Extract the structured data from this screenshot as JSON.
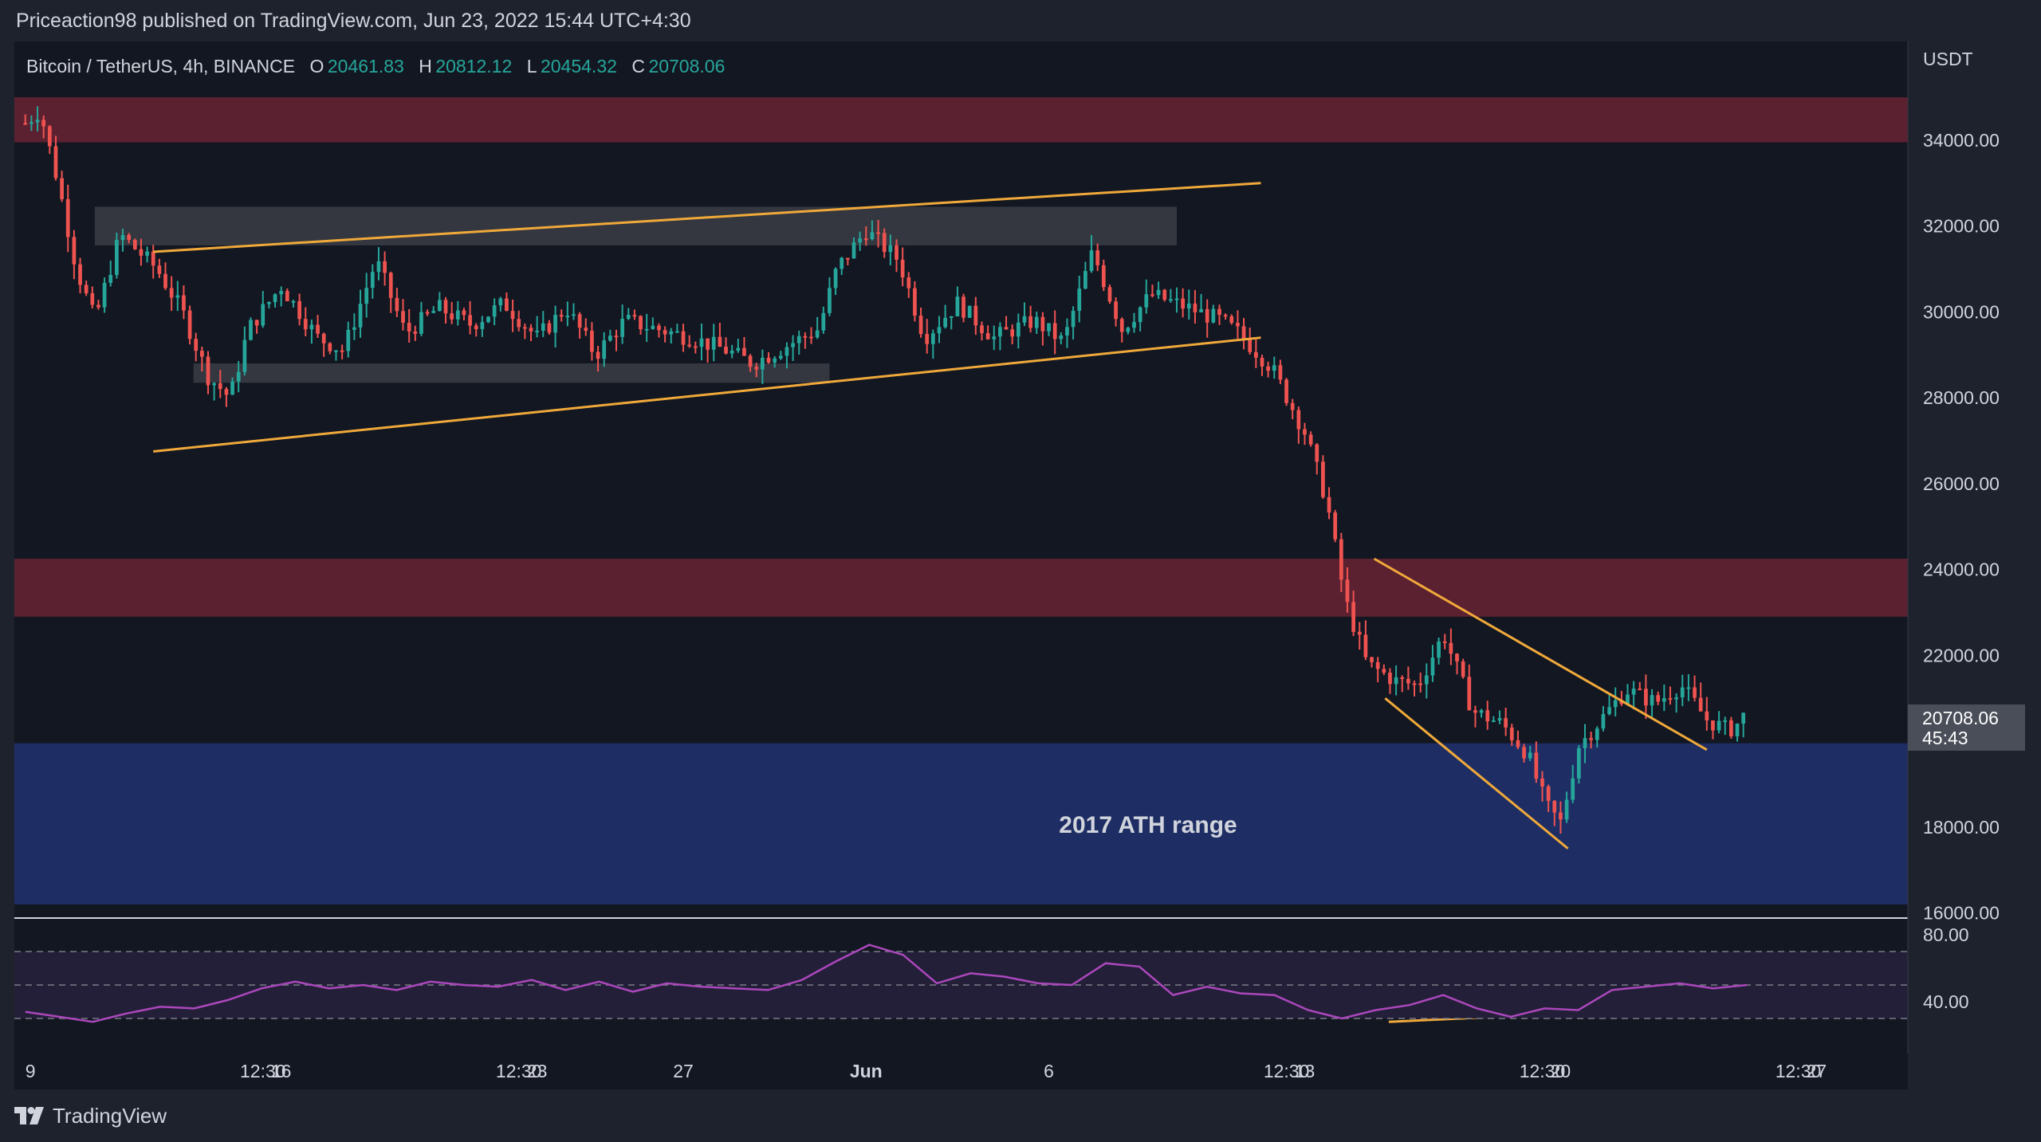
{
  "header": {
    "published_by": "Priceaction98 published on TradingView.com, Jun 23, 2022 15:44 UTC+4:30"
  },
  "footer": {
    "brand": "TradingView"
  },
  "colors": {
    "background": "#131722",
    "up": "#26a69a",
    "down": "#ef5350",
    "resistance_zone": "#5c2130",
    "support_zone": "#1e2e64",
    "range_box": "#3b3d44",
    "trendline": "#f0a93a",
    "rsi": "#ab47bc",
    "rsi_band": "#241f38"
  },
  "chart_data": {
    "type": "candlestick",
    "symbol": "Bitcoin / TetherUS, 4h, BINANCE",
    "ohlc": {
      "o_label": "O",
      "o": "20461.83",
      "h_label": "H",
      "h": "20812.12",
      "l_label": "L",
      "l": "20454.32",
      "c_label": "C",
      "c": "20708.06"
    },
    "currency": "USDT",
    "last_price": "20708.06",
    "countdown": "45:43",
    "y_ticks": [
      "34000.00",
      "32000.00",
      "30000.00",
      "28000.00",
      "26000.00",
      "24000.00",
      "22000.00",
      "18000.00",
      "16000.00"
    ],
    "y_range": [
      15880,
      36300
    ],
    "x_ticks": [
      "9",
      "12:30",
      "16",
      "12:30",
      "23",
      "27",
      "Jun",
      "6",
      "12:30",
      "13",
      "12:30",
      "20",
      "12:30",
      "27"
    ],
    "x_tick_day_positions": [
      0,
      6.5,
      7,
      13.5,
      14,
      18,
      23,
      28,
      34.5,
      35,
      41.5,
      42,
      48.5,
      49
    ],
    "x_range": [
      -0.3,
      51.5
    ],
    "path_points": [
      [
        0,
        34400
      ],
      [
        0.4,
        34700
      ],
      [
        0.9,
        33000
      ],
      [
        1.4,
        31000
      ],
      [
        1.9,
        29800
      ],
      [
        2.6,
        31800
      ],
      [
        3.6,
        31000
      ],
      [
        4.3,
        30000
      ],
      [
        5.0,
        28500
      ],
      [
        5.6,
        28000
      ],
      [
        6.1,
        29600
      ],
      [
        7.0,
        30600
      ],
      [
        8.0,
        29400
      ],
      [
        8.7,
        29100
      ],
      [
        9.6,
        31200
      ],
      [
        10.4,
        29500
      ],
      [
        11.3,
        30100
      ],
      [
        12.2,
        29700
      ],
      [
        13.1,
        30200
      ],
      [
        14.0,
        29400
      ],
      [
        14.8,
        30100
      ],
      [
        15.6,
        29000
      ],
      [
        16.4,
        29800
      ],
      [
        17.3,
        29600
      ],
      [
        18.2,
        29400
      ],
      [
        19.2,
        29100
      ],
      [
        19.9,
        28800
      ],
      [
        20.8,
        29200
      ],
      [
        21.7,
        29600
      ],
      [
        22.2,
        31000
      ],
      [
        23.0,
        31900
      ],
      [
        23.9,
        31200
      ],
      [
        24.6,
        29400
      ],
      [
        25.5,
        30200
      ],
      [
        26.5,
        29400
      ],
      [
        27.6,
        29800
      ],
      [
        28.4,
        29300
      ],
      [
        29.2,
        31400
      ],
      [
        30.0,
        29600
      ],
      [
        30.8,
        30400
      ],
      [
        31.8,
        30100
      ],
      [
        32.7,
        29800
      ],
      [
        33.2,
        29500
      ],
      [
        34.1,
        28700
      ],
      [
        35.0,
        27200
      ],
      [
        35.6,
        25600
      ],
      [
        36.1,
        23300
      ],
      [
        36.7,
        21800
      ],
      [
        37.5,
        21400
      ],
      [
        38.1,
        21300
      ],
      [
        38.8,
        22500
      ],
      [
        39.6,
        20700
      ],
      [
        40.4,
        20400
      ],
      [
        41.1,
        19700
      ],
      [
        41.6,
        18500
      ],
      [
        42.0,
        18100
      ],
      [
        42.5,
        19900
      ],
      [
        43.2,
        20600
      ],
      [
        43.8,
        21200
      ],
      [
        44.6,
        20900
      ],
      [
        45.3,
        21300
      ],
      [
        46.0,
        20500
      ],
      [
        46.6,
        20250
      ],
      [
        46.9,
        20450
      ],
      [
        47.1,
        20708
      ]
    ],
    "rsi": {
      "values": [
        34,
        31,
        28,
        33,
        37,
        36,
        41,
        48,
        52,
        48,
        50,
        47,
        52,
        50,
        49,
        53,
        47,
        52,
        46,
        51,
        49,
        48,
        47,
        53,
        64,
        74,
        68,
        51,
        57,
        55,
        51,
        50,
        63,
        61,
        44,
        49,
        45,
        44,
        35,
        30,
        35,
        38,
        44,
        36,
        31,
        36,
        35,
        47,
        49,
        51,
        48,
        50
      ],
      "levels": [
        70,
        50,
        30
      ],
      "band": [
        30,
        70
      ],
      "ticks": [
        "80.00",
        "40.00"
      ],
      "y_range": [
        10,
        90
      ]
    },
    "zones": [
      {
        "name": "resistance-upper",
        "from": 33950,
        "to": 35000
      },
      {
        "name": "resistance-lower",
        "from": 22900,
        "to": 24250
      },
      {
        "name": "support",
        "from": 16200,
        "to": 19950,
        "label": "2017 ATH range"
      }
    ],
    "range_boxes": [
      {
        "name": "range-top",
        "x": [
          1.9,
          31.5
        ],
        "y": [
          31550,
          32450
        ]
      },
      {
        "name": "range-bottom",
        "x": [
          4.6,
          22.0
        ],
        "y": [
          28350,
          28800
        ]
      }
    ],
    "trendlines": [
      {
        "name": "channel-upper",
        "points": [
          [
            3.5,
            31400
          ],
          [
            33.8,
            33000
          ]
        ]
      },
      {
        "name": "channel-lower",
        "points": [
          [
            3.5,
            26750
          ],
          [
            33.8,
            29400
          ]
        ]
      },
      {
        "name": "wedge-upper",
        "points": [
          [
            36.9,
            24250
          ],
          [
            46.0,
            19800
          ]
        ]
      },
      {
        "name": "wedge-lower",
        "points": [
          [
            37.2,
            21000
          ],
          [
            42.2,
            17500
          ]
        ]
      },
      {
        "name": "rsi-divergence",
        "points": [
          [
            37.3,
            28
          ],
          [
            42.3,
            33
          ]
        ],
        "pane": "rsi"
      }
    ]
  }
}
